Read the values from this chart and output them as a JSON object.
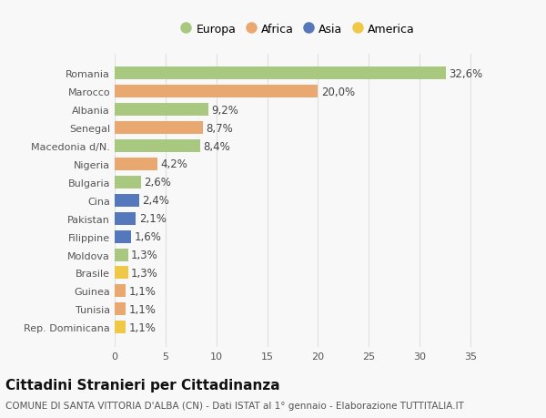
{
  "countries": [
    "Romania",
    "Marocco",
    "Albania",
    "Senegal",
    "Macedonia d/N.",
    "Nigeria",
    "Bulgaria",
    "Cina",
    "Pakistan",
    "Filippine",
    "Moldova",
    "Brasile",
    "Guinea",
    "Tunisia",
    "Rep. Dominicana"
  ],
  "values": [
    32.6,
    20.0,
    9.2,
    8.7,
    8.4,
    4.2,
    2.6,
    2.4,
    2.1,
    1.6,
    1.3,
    1.3,
    1.1,
    1.1,
    1.1
  ],
  "labels": [
    "32,6%",
    "20,0%",
    "9,2%",
    "8,7%",
    "8,4%",
    "4,2%",
    "2,6%",
    "2,4%",
    "2,1%",
    "1,6%",
    "1,3%",
    "1,3%",
    "1,1%",
    "1,1%",
    "1,1%"
  ],
  "continents": [
    "Europa",
    "Africa",
    "Europa",
    "Africa",
    "Europa",
    "Africa",
    "Europa",
    "Asia",
    "Asia",
    "Asia",
    "Europa",
    "America",
    "Africa",
    "Africa",
    "America"
  ],
  "continent_colors": {
    "Europa": "#a8c880",
    "Africa": "#e8a870",
    "Asia": "#5577bb",
    "America": "#f0c848"
  },
  "legend_order": [
    "Europa",
    "Africa",
    "Asia",
    "America"
  ],
  "title": "Cittadini Stranieri per Cittadinanza",
  "subtitle": "COMUNE DI SANTA VITTORIA D'ALBA (CN) - Dati ISTAT al 1° gennaio - Elaborazione TUTTITALIA.IT",
  "xlim": [
    0,
    36
  ],
  "xticks": [
    0,
    5,
    10,
    15,
    20,
    25,
    30,
    35
  ],
  "background_color": "#f8f8f8",
  "grid_color": "#e0e0e0",
  "bar_height": 0.7,
  "label_fontsize": 8.5,
  "title_fontsize": 11,
  "subtitle_fontsize": 7.5,
  "tick_fontsize": 8,
  "legend_fontsize": 9
}
